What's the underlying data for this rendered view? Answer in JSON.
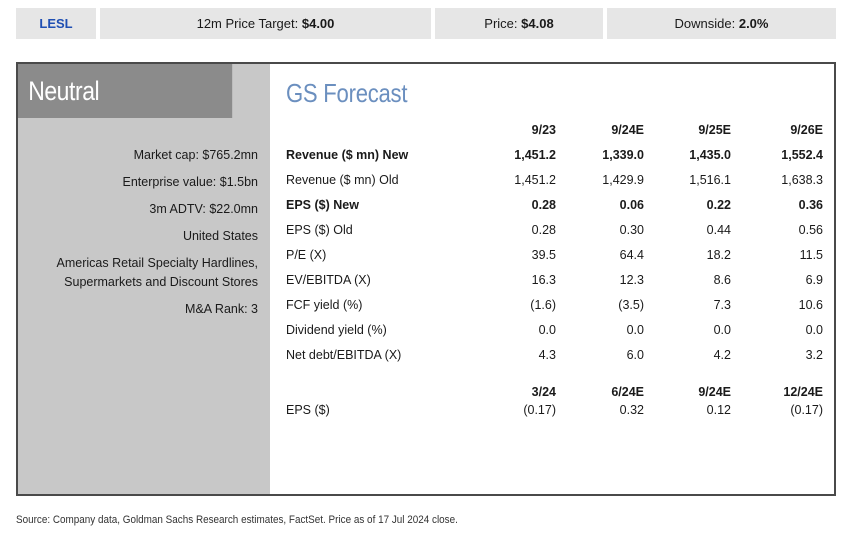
{
  "header": {
    "ticker": "LESL",
    "price_target_label": "12m Price Target:",
    "price_target_value": "$4.00",
    "price_label": "Price:",
    "price_value": "$4.08",
    "downside_label": "Downside:",
    "downside_value": "2.0%"
  },
  "left": {
    "rating": "Neutral",
    "market_cap": "Market cap: $765.2mn",
    "enterprise_value": "Enterprise value: $1.5bn",
    "adtv": "3m ADTV: $22.0mn",
    "country": "United States",
    "sector_line1": "Americas Retail Specialty Hardlines,",
    "sector_line2": "Supermarkets and Discount Stores",
    "ma_rank": "M&A Rank: 3"
  },
  "forecast": {
    "title": "GS Forecast",
    "annual_headers": [
      "9/23",
      "9/24E",
      "9/25E",
      "9/26E"
    ],
    "rows": [
      {
        "label": "Revenue ($ mn) New",
        "values": [
          "1,451.2",
          "1,339.0",
          "1,435.0",
          "1,552.4"
        ],
        "bold": true
      },
      {
        "label": "Revenue ($ mn) Old",
        "values": [
          "1,451.2",
          "1,429.9",
          "1,516.1",
          "1,638.3"
        ],
        "bold": false
      },
      {
        "label": "EPS ($) New",
        "values": [
          "0.28",
          "0.06",
          "0.22",
          "0.36"
        ],
        "bold": true
      },
      {
        "label": "EPS ($) Old",
        "values": [
          "0.28",
          "0.30",
          "0.44",
          "0.56"
        ],
        "bold": false
      },
      {
        "label": "P/E (X)",
        "values": [
          "39.5",
          "64.4",
          "18.2",
          "11.5"
        ],
        "bold": false
      },
      {
        "label": "EV/EBITDA (X)",
        "values": [
          "16.3",
          "12.3",
          "8.6",
          "6.9"
        ],
        "bold": false
      },
      {
        "label": "FCF yield (%)",
        "values": [
          "(1.6)",
          "(3.5)",
          "7.3",
          "10.6"
        ],
        "bold": false
      },
      {
        "label": "Dividend yield (%)",
        "values": [
          "0.0",
          "0.0",
          "0.0",
          "0.0"
        ],
        "bold": false
      },
      {
        "label": "Net debt/EBITDA (X)",
        "values": [
          "4.3",
          "6.0",
          "4.2",
          "3.2"
        ],
        "bold": false
      }
    ],
    "quarter_headers": [
      "3/24",
      "6/24E",
      "9/24E",
      "12/24E"
    ],
    "quarter_row": {
      "label": "EPS ($)",
      "values": [
        "(0.17)",
        "0.32",
        "0.12",
        "(0.17)"
      ]
    }
  },
  "footer": {
    "source": "Source: Company data, Goldman Sachs Research estimates, FactSet. Price as of 17 Jul 2024 close."
  },
  "colors": {
    "ticker": "#1f4fb3",
    "title": "#6b8fbf",
    "rating_bg": "#8b8b8b",
    "left_bg": "#c8c8c8",
    "header_bg": "#e6e6e6"
  }
}
